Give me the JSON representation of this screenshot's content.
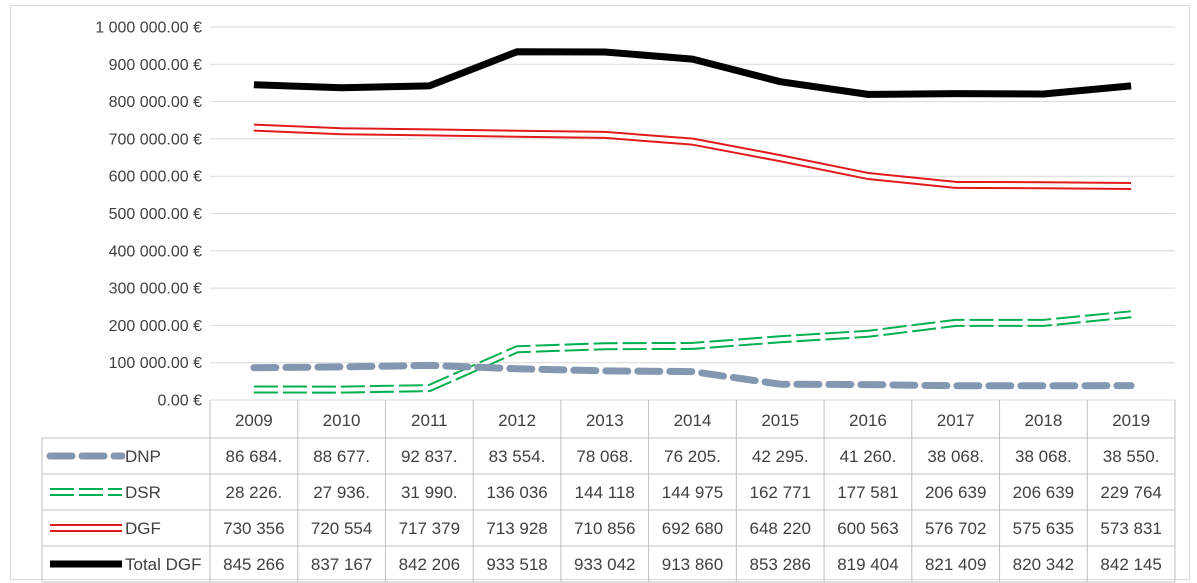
{
  "chart_data": {
    "type": "line",
    "title": "",
    "xlabel": "",
    "ylabel": "",
    "ylim": [
      0,
      1000000
    ],
    "y_ticks": [
      0,
      100000,
      200000,
      300000,
      400000,
      500000,
      600000,
      700000,
      800000,
      900000,
      1000000
    ],
    "y_tick_labels": [
      "0.00 €",
      "100 000.00 €",
      "200 000.00 €",
      "300 000.00 €",
      "400 000.00 €",
      "500 000.00 €",
      "600 000.00 €",
      "700 000.00 €",
      "800 000.00 €",
      "900 000.00 €",
      "1 000 000.00 €"
    ],
    "categories": [
      "2009",
      "2010",
      "2011",
      "2012",
      "2013",
      "2014",
      "2015",
      "2016",
      "2017",
      "2018",
      "2019"
    ],
    "grid": true,
    "legend": "data-table",
    "series": [
      {
        "name": "DNP",
        "color": "#8497b0",
        "style": "dashed",
        "values": [
          86684,
          88677,
          92837,
          83554,
          78068,
          76205,
          42295,
          41260,
          38068,
          38068,
          38550
        ],
        "table_labels": [
          "86 684.",
          "88 677.",
          "92 837.",
          "83 554.",
          "78 068.",
          "76 205.",
          "42 295.",
          "41 260.",
          "38 068.",
          "38 068.",
          "38 550."
        ]
      },
      {
        "name": "DSR",
        "color": "#00b050",
        "style": "double-dashed",
        "values": [
          28226,
          27936,
          31990,
          136036,
          144118,
          144975,
          162771,
          177581,
          206639,
          206639,
          229764
        ],
        "table_labels": [
          "28 226.",
          "27 936.",
          "31 990.",
          "136 036",
          "144 118",
          "144 975",
          "162 771",
          "177 581",
          "206 639",
          "206 639",
          "229 764"
        ]
      },
      {
        "name": "DGF",
        "color": "#e31a1c",
        "style": "double",
        "values": [
          730356,
          720554,
          717379,
          713928,
          710856,
          692680,
          648220,
          600563,
          576702,
          575635,
          573831
        ],
        "table_labels": [
          "730 356",
          "720 554",
          "717 379",
          "713 928",
          "710 856",
          "692 680",
          "648 220",
          "600 563",
          "576 702",
          "575 635",
          "573 831"
        ]
      },
      {
        "name": "Total DGF",
        "color": "#000000",
        "style": "thick",
        "values": [
          845266,
          837167,
          842206,
          933518,
          933042,
          913860,
          853286,
          819404,
          821409,
          820342,
          842145
        ],
        "table_labels": [
          "845 266",
          "837 167",
          "842 206",
          "933 518",
          "933 042",
          "913 860",
          "853 286",
          "819 404",
          "821 409",
          "820 342",
          "842 145"
        ]
      }
    ]
  }
}
